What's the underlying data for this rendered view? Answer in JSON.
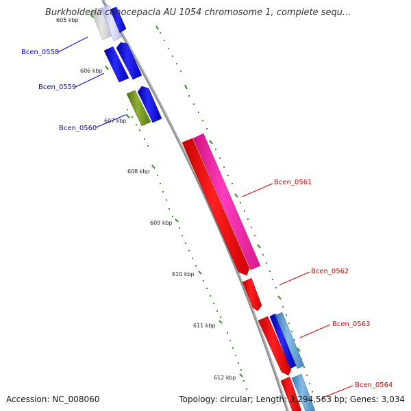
{
  "title": "Burkholderia cenocepacia AU 1054 chromosome 1, complete sequ...",
  "accession": "Accession: NC_008060",
  "topology": "Topology: circular; Length: 3,294,563 bp; Genes: 3,034",
  "ticks": [
    "605 kbp",
    "606 kbp",
    "607 kbp",
    "608 kbp",
    "609 kbp",
    "610 kbp",
    "611 kbp",
    "612 kbp"
  ],
  "genes": [
    {
      "label": "Bcen_0558",
      "color": "#0000cc"
    },
    {
      "label": "Bcen_0559",
      "color": "#0000cc"
    },
    {
      "label": "Bcen_0560",
      "color": "#0000cc"
    },
    {
      "label": "Bcen_0561",
      "color": "#cc0000"
    },
    {
      "label": "Bcen_0562",
      "color": "#cc0000"
    },
    {
      "label": "Bcen_0563",
      "color": "#cc0000"
    },
    {
      "label": "Bcen_0564",
      "color": "#cc0000"
    }
  ],
  "colors": {
    "backbone": "#8c8c8c",
    "tick": "#2e8b1e",
    "forward_blue": "#0a0aee",
    "pale_blue": "#c8c8f4",
    "olive": "#6f8f1e",
    "red": "#ee0000",
    "magenta": "#ee1aa0",
    "steel_blue": "#5a98c8",
    "pale_gray": "#cfcfcf"
  }
}
